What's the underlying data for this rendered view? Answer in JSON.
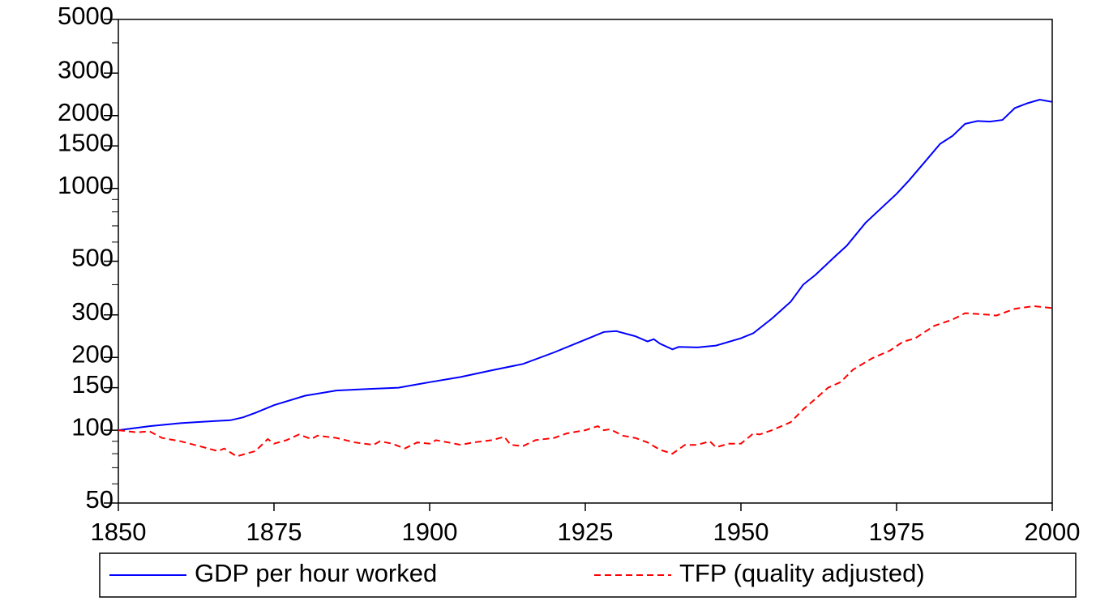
{
  "chart_data": {
    "type": "line",
    "log_y": true,
    "xlim": [
      1850,
      2000
    ],
    "xticks": [
      1850,
      1875,
      1900,
      1925,
      1950,
      1975,
      2000
    ],
    "ylim": [
      50,
      5000
    ],
    "yticks": [
      50,
      100,
      150,
      200,
      300,
      500,
      1000,
      1500,
      2000,
      3000,
      5000
    ],
    "minor_yticks": [
      60,
      70,
      80,
      90,
      400,
      600,
      700,
      800,
      900,
      4000
    ],
    "legend": "bottom",
    "series": [
      {
        "name": "GDP per hour worked",
        "color": "#0000ff",
        "dash": false,
        "x": [
          1850,
          1855,
          1860,
          1865,
          1868,
          1870,
          1872,
          1875,
          1880,
          1885,
          1890,
          1895,
          1900,
          1905,
          1910,
          1915,
          1920,
          1925,
          1928,
          1930,
          1933,
          1935,
          1936,
          1937,
          1939,
          1940,
          1943,
          1946,
          1950,
          1952,
          1955,
          1958,
          1960,
          1962,
          1965,
          1967,
          1970,
          1973,
          1975,
          1977,
          1980,
          1982,
          1984,
          1986,
          1988,
          1990,
          1992,
          1994,
          1996,
          1998,
          2000
        ],
        "values": [
          100,
          104,
          107,
          109,
          110,
          113,
          118,
          127,
          139,
          146,
          148,
          150,
          158,
          166,
          177,
          188,
          210,
          237,
          255,
          257,
          245,
          233,
          238,
          228,
          216,
          221,
          220,
          224,
          240,
          252,
          290,
          340,
          400,
          440,
          520,
          580,
          720,
          850,
          950,
          1080,
          1330,
          1530,
          1650,
          1850,
          1900,
          1890,
          1920,
          2150,
          2250,
          2330,
          2280
        ]
      },
      {
        "name": "TFP (quality adjusted)",
        "color": "#ff0000",
        "dash": true,
        "x": [
          1850,
          1853,
          1855,
          1857,
          1860,
          1863,
          1866,
          1867,
          1869,
          1872,
          1874,
          1875,
          1877,
          1879,
          1881,
          1882,
          1885,
          1888,
          1891,
          1892,
          1894,
          1896,
          1898,
          1900,
          1901,
          1903,
          1905,
          1907,
          1910,
          1912,
          1913,
          1915,
          1917,
          1920,
          1922,
          1925,
          1927,
          1928,
          1929,
          1931,
          1933,
          1935,
          1937,
          1939,
          1941,
          1943,
          1945,
          1946,
          1948,
          1950,
          1952,
          1953,
          1955,
          1958,
          1960,
          1962,
          1964,
          1966,
          1968,
          1971,
          1974,
          1976,
          1978,
          1981,
          1984,
          1986,
          1990,
          1991,
          1994,
          1997,
          2000
        ],
        "values": [
          100,
          98,
          99,
          93,
          90,
          86,
          82,
          84,
          78,
          82,
          92,
          88,
          91,
          96,
          92,
          95,
          93,
          89,
          87,
          90,
          88,
          84,
          89,
          88,
          91,
          89,
          87,
          89,
          91,
          94,
          87,
          86,
          91,
          93,
          97,
          100,
          104,
          100,
          101,
          95,
          93,
          89,
          83,
          80,
          87,
          87,
          90,
          85,
          88,
          88,
          97,
          96,
          100,
          108,
          122,
          135,
          150,
          158,
          178,
          198,
          214,
          232,
          240,
          270,
          287,
          305,
          300,
          298,
          318,
          326,
          320
        ]
      }
    ]
  }
}
